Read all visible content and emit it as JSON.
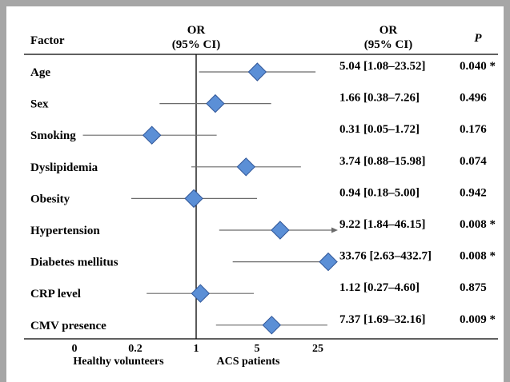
{
  "chart_data": {
    "type": "forest",
    "headers": {
      "factor": "Factor",
      "or_plot_line1": "OR",
      "or_plot_line2": "(95% CI)",
      "or_col_line1": "OR",
      "or_col_line2": "(95% CI)",
      "p": "P"
    },
    "rows": [
      {
        "factor": "Age",
        "or": 5.04,
        "lo": 1.08,
        "hi": 23.52,
        "ci_text": "5.04 [1.08–23.52]",
        "p": "0.040 *",
        "arrow": false
      },
      {
        "factor": "Sex",
        "or": 1.66,
        "lo": 0.38,
        "hi": 7.26,
        "ci_text": "1.66 [0.38–7.26]",
        "p": "0.496",
        "arrow": false
      },
      {
        "factor": "Smoking",
        "or": 0.31,
        "lo": 0.05,
        "hi": 1.72,
        "ci_text": "0.31 [0.05–1.72]",
        "p": "0.176",
        "arrow": false
      },
      {
        "factor": "Dyslipidemia",
        "or": 3.74,
        "lo": 0.88,
        "hi": 15.98,
        "ci_text": "3.74 [0.88–15.98]",
        "p": "0.074",
        "arrow": false
      },
      {
        "factor": "Obesity",
        "or": 0.94,
        "lo": 0.18,
        "hi": 5.0,
        "ci_text": "0.94 [0.18–5.00]",
        "p": "0.942",
        "arrow": false
      },
      {
        "factor": "Hypertension",
        "or": 9.22,
        "lo": 1.84,
        "hi": 46.15,
        "ci_text": "9.22 [1.84–46.15]",
        "p": "0.008 *",
        "arrow": true
      },
      {
        "factor": "Diabetes mellitus",
        "or": 33.76,
        "lo": 2.63,
        "hi": 432.7,
        "ci_text": "33.76 [2.63–432.7]",
        "p": "0.008 *",
        "arrow": true
      },
      {
        "factor": "CRP level",
        "or": 1.12,
        "lo": 0.27,
        "hi": 4.6,
        "ci_text": "1.12 [0.27–4.60]",
        "p": "0.875",
        "arrow": false
      },
      {
        "factor": "CMV presence",
        "or": 7.37,
        "lo": 1.69,
        "hi": 32.16,
        "ci_text": "7.37 [1.69–32.16]",
        "p": "0.009 *",
        "arrow": false
      }
    ],
    "x_ticks": [
      {
        "label": "0",
        "value": 0.04
      },
      {
        "label": "0.2",
        "value": 0.2
      },
      {
        "label": "1",
        "value": 1
      },
      {
        "label": "5",
        "value": 5
      },
      {
        "label": "25",
        "value": 25
      }
    ],
    "xlim": [
      0.04,
      40
    ],
    "scale": "log",
    "reference_line": 1,
    "group_labels": {
      "left": "Healthy volunteers",
      "right": "ACS patients"
    },
    "colors": {
      "marker_fill": "#5b8fd6",
      "marker_stroke": "#2f5597",
      "ci_line": "#6b6b6b",
      "axis": "#000000",
      "frame": "#a6a6a6"
    }
  }
}
